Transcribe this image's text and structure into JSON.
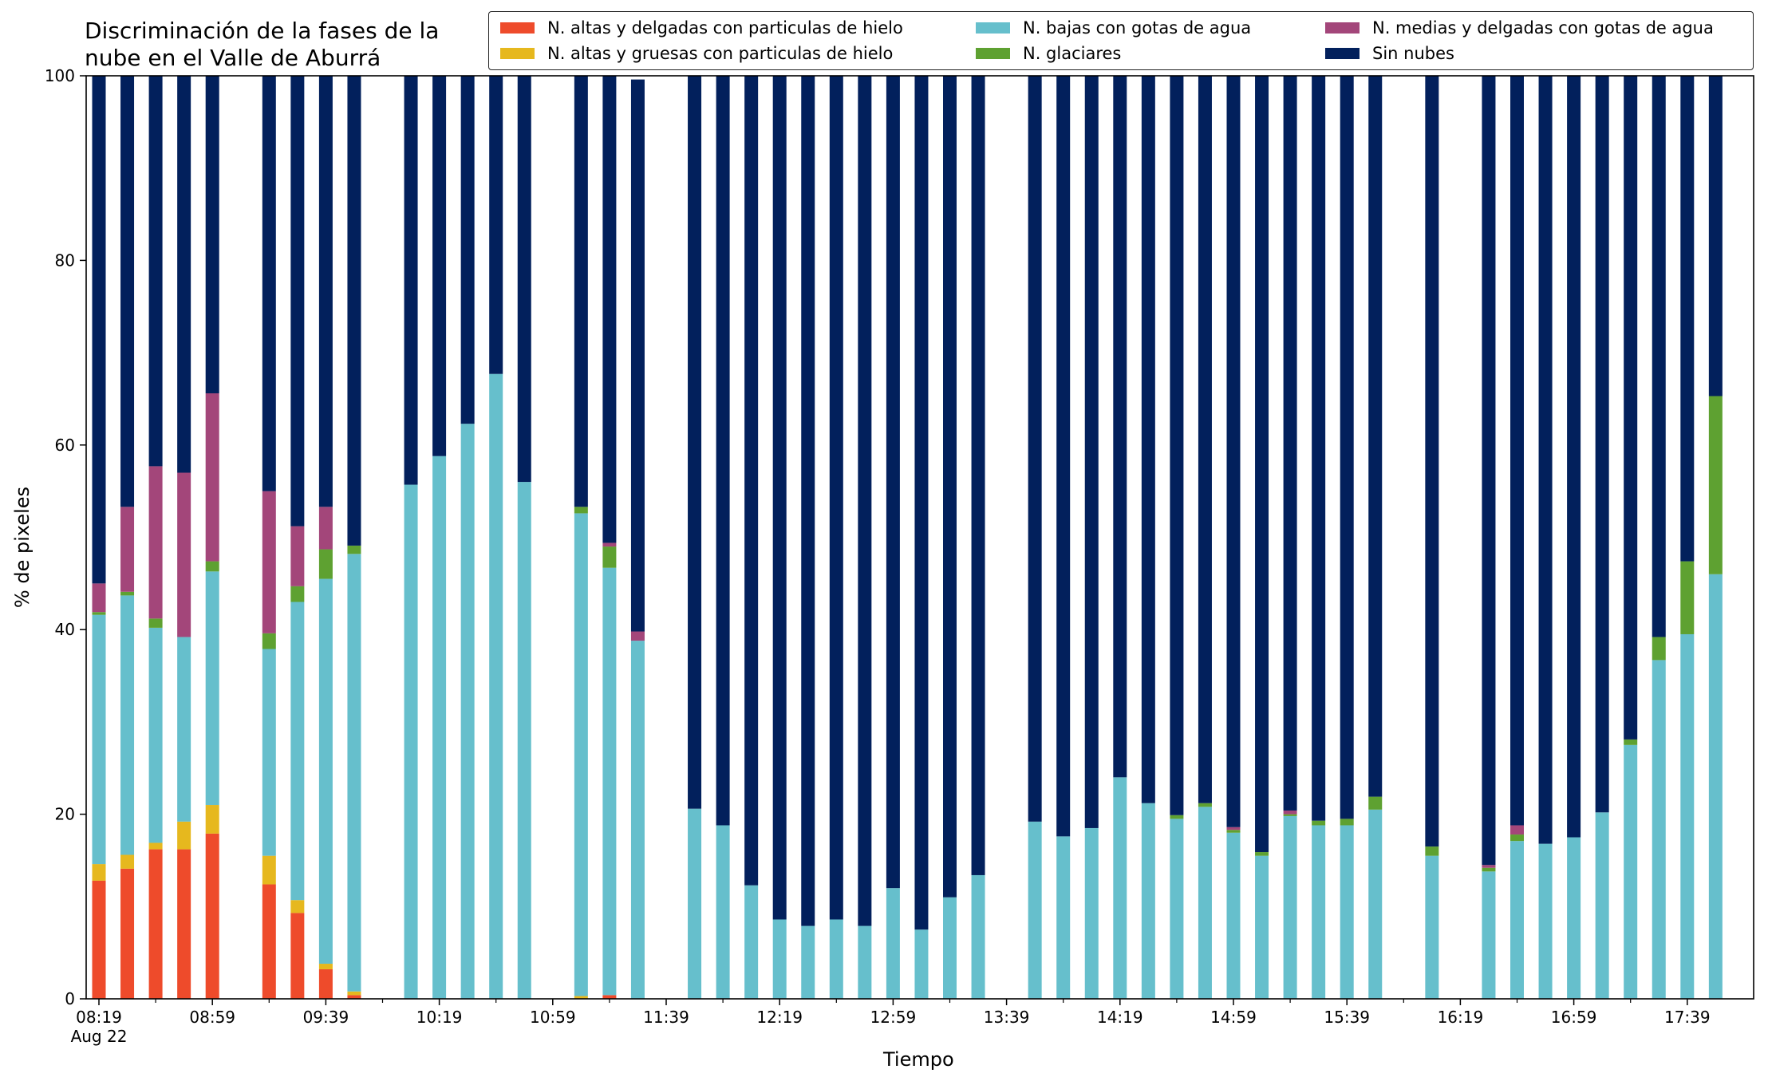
{
  "chart_data": {
    "type": "bar",
    "stacked": true,
    "title": "Discriminación de la fases de la\nnube en el Valle de Aburrá",
    "xlabel": "Tiempo",
    "ylabel": "% de pixeles",
    "ylim": [
      0,
      100
    ],
    "yticks": [
      0,
      20,
      40,
      60,
      80,
      100
    ],
    "grid": false,
    "legend_position": "top",
    "xtick_labels": [
      "08:19\nAug 22",
      "08:59",
      "09:39",
      "10:19",
      "10:59",
      "11:39",
      "12:19",
      "12:59",
      "13:39",
      "14:19",
      "14:59",
      "15:39",
      "16:19",
      "16:59",
      "17:39"
    ],
    "times": [
      "08:19",
      "08:29",
      "08:39",
      "08:49",
      "08:59",
      "09:09",
      "09:19",
      "09:29",
      "09:39",
      "09:49",
      "09:59",
      "10:09",
      "10:19",
      "10:29",
      "10:39",
      "10:49",
      "10:59",
      "11:09",
      "11:19",
      "11:29",
      "11:39",
      "11:49",
      "11:59",
      "12:09",
      "12:19",
      "12:29",
      "12:39",
      "12:49",
      "12:59",
      "13:09",
      "13:19",
      "13:29",
      "13:39",
      "13:49",
      "13:59",
      "14:09",
      "14:19",
      "14:29",
      "14:39",
      "14:49",
      "14:59",
      "15:09",
      "15:19",
      "15:29",
      "15:39",
      "15:49",
      "15:59",
      "16:09",
      "16:19",
      "16:29",
      "16:39",
      "16:49",
      "16:59",
      "17:09",
      "17:19",
      "17:29",
      "17:39",
      "17:49"
    ],
    "series": [
      {
        "name": "N. altas y delgadas con particulas de hielo",
        "color": "#ee4b2b",
        "values": [
          12.8,
          14.1,
          16.2,
          16.2,
          17.9,
          null,
          12.4,
          9.3,
          3.2,
          0.4,
          null,
          null,
          null,
          null,
          null,
          null,
          null,
          null,
          0.4,
          null,
          null,
          null,
          null,
          null,
          null,
          null,
          null,
          null,
          null,
          null,
          null,
          null,
          null,
          null,
          null,
          null,
          null,
          null,
          null,
          null,
          null,
          null,
          null,
          null,
          null,
          null,
          null,
          null,
          null,
          null,
          null,
          null,
          null,
          null,
          null,
          null,
          null,
          null
        ]
      },
      {
        "name": "N. altas y gruesas con particulas de hielo",
        "color": "#e6b81e",
        "values": [
          1.8,
          1.5,
          0.7,
          3.0,
          3.1,
          null,
          3.1,
          1.4,
          0.6,
          0.4,
          null,
          null,
          null,
          null,
          null,
          null,
          null,
          0.3,
          null,
          null,
          null,
          null,
          null,
          null,
          null,
          null,
          null,
          null,
          null,
          null,
          null,
          null,
          null,
          null,
          null,
          null,
          null,
          null,
          null,
          null,
          null,
          null,
          null,
          null,
          null,
          null,
          null,
          null,
          null,
          null,
          null,
          null,
          null,
          null,
          null,
          null,
          null,
          null
        ]
      },
      {
        "name": "N. bajas con gotas de agua",
        "color": "#66bfcc",
        "values": [
          27.0,
          28.1,
          23.3,
          20.0,
          25.3,
          null,
          22.4,
          32.3,
          41.7,
          47.4,
          null,
          55.7,
          58.8,
          62.3,
          67.7,
          56.0,
          null,
          52.3,
          46.3,
          38.8,
          null,
          20.6,
          18.8,
          12.3,
          8.6,
          7.9,
          8.6,
          7.9,
          12.0,
          7.5,
          11.0,
          13.4,
          null,
          19.2,
          17.6,
          18.5,
          24.0,
          21.2,
          19.5,
          20.8,
          18.0,
          15.5,
          19.8,
          18.8,
          18.8,
          20.5,
          null,
          15.5,
          null,
          13.8,
          17.1,
          16.8,
          17.5,
          20.2,
          27.5,
          36.7,
          39.5,
          46.0
        ]
      },
      {
        "name": "N. glaciares",
        "color": "#5ea131",
        "values": [
          0.3,
          0.4,
          1.0,
          null,
          1.1,
          null,
          1.7,
          1.7,
          3.2,
          0.9,
          null,
          null,
          null,
          null,
          null,
          null,
          null,
          0.7,
          2.3,
          null,
          null,
          null,
          null,
          null,
          null,
          null,
          null,
          null,
          null,
          null,
          null,
          null,
          null,
          null,
          null,
          null,
          null,
          null,
          0.4,
          0.4,
          0.3,
          0.4,
          0.2,
          0.5,
          0.7,
          1.4,
          null,
          1.0,
          null,
          0.4,
          0.7,
          null,
          null,
          null,
          0.6,
          2.5,
          7.9,
          19.3
        ]
      },
      {
        "name": "N. medias y delgadas con gotas de agua",
        "color": "#a3467a",
        "values": [
          3.1,
          9.2,
          16.5,
          17.8,
          18.2,
          null,
          15.4,
          6.5,
          4.6,
          null,
          null,
          null,
          null,
          null,
          null,
          null,
          null,
          null,
          0.4,
          1.0,
          null,
          null,
          null,
          null,
          null,
          null,
          null,
          null,
          null,
          null,
          null,
          null,
          null,
          null,
          null,
          null,
          null,
          null,
          null,
          null,
          0.3,
          null,
          0.4,
          null,
          null,
          null,
          null,
          null,
          null,
          0.3,
          1.0,
          null,
          null,
          null,
          null,
          null,
          null,
          null
        ]
      },
      {
        "name": "Sin nubes",
        "color": "#02205c",
        "values": [
          55.0,
          46.7,
          42.3,
          43.0,
          34.4,
          null,
          45.0,
          48.8,
          46.7,
          50.9,
          null,
          44.3,
          41.2,
          37.7,
          32.3,
          44.0,
          null,
          46.7,
          50.6,
          59.8,
          null,
          79.4,
          81.2,
          87.7,
          91.4,
          92.1,
          91.4,
          92.1,
          88.0,
          92.5,
          89.0,
          86.6,
          null,
          80.8,
          82.4,
          81.5,
          76.0,
          78.8,
          80.1,
          78.8,
          81.4,
          84.1,
          79.6,
          80.7,
          80.5,
          78.1,
          null,
          83.5,
          null,
          85.5,
          81.2,
          83.2,
          82.5,
          79.8,
          71.9,
          60.8,
          52.6,
          34.7
        ]
      }
    ]
  }
}
